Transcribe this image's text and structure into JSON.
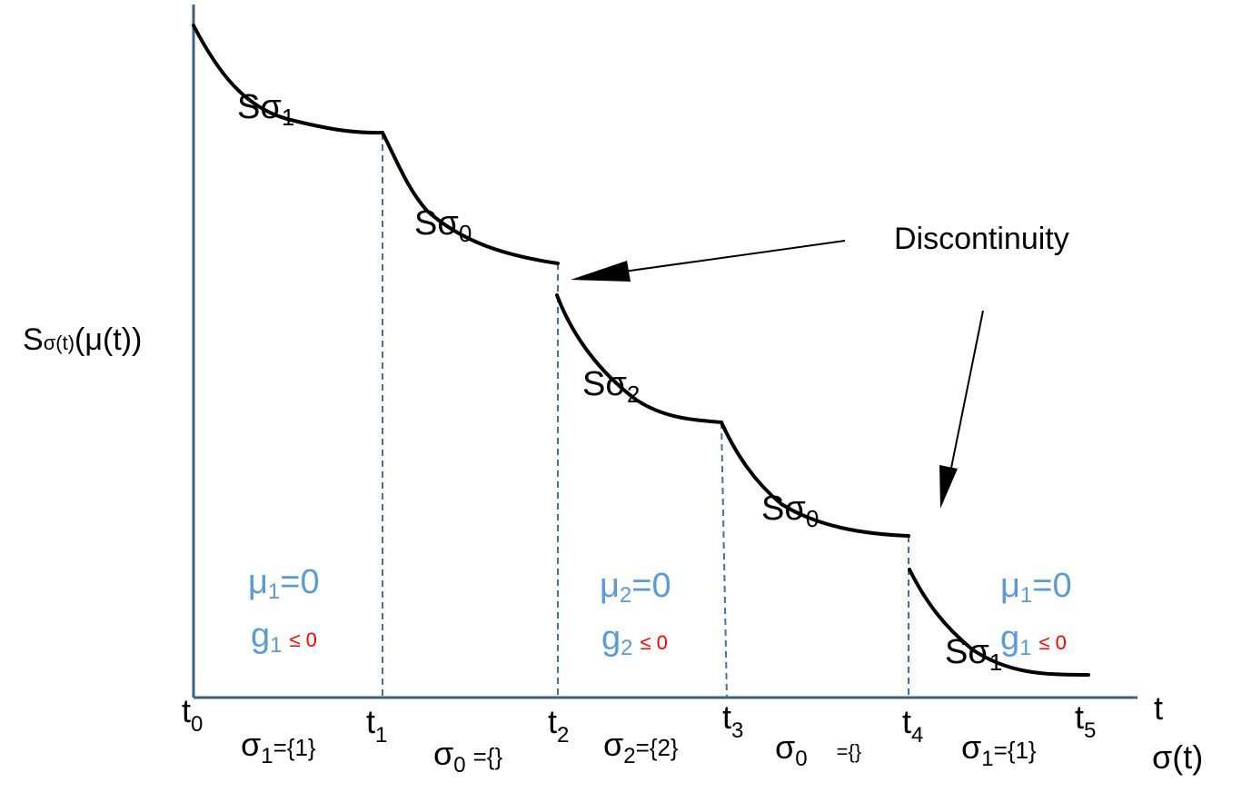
{
  "y_axis_label": {
    "main": "S",
    "sub": "σ(t)",
    "rest": "(μ(t))"
  },
  "x_axis_label": "t",
  "x_axis_label_2": "σ(t)",
  "ticks": [
    {
      "main": "t",
      "sub": "0"
    },
    {
      "main": "t",
      "sub": "1"
    },
    {
      "main": "t",
      "sub": "2"
    },
    {
      "main": "t",
      "sub": "3"
    },
    {
      "main": "t",
      "sub": "4"
    },
    {
      "main": "t",
      "sub": "5"
    }
  ],
  "curve_labels": [
    {
      "main": "Sσ",
      "sub": "1"
    },
    {
      "main": "Sσ",
      "sub": "0"
    },
    {
      "main": "Sσ",
      "sub": "2"
    },
    {
      "main": "Sσ",
      "sub": "0"
    },
    {
      "main": "Sσ",
      "sub": "1"
    }
  ],
  "mode_labels": [
    {
      "main": "σ",
      "sub": "1",
      "rest": "={1}"
    },
    {
      "main": "σ",
      "sub": "0",
      "rest": "={}"
    },
    {
      "main": "σ",
      "sub": "2",
      "rest": "={2}"
    },
    {
      "main": "σ",
      "sub": "0",
      "rest": "={}"
    },
    {
      "main": "σ",
      "sub": "1",
      "rest": "={1}"
    }
  ],
  "constraints": [
    {
      "mu": "μ",
      "mu_sub": "1",
      "mu_rest": "=0",
      "g": "g",
      "g_sub": "1",
      "g_rest": "≤ 0"
    },
    {
      "mu": "μ",
      "mu_sub": "2",
      "mu_rest": "=0",
      "g": "g",
      "g_sub": "2",
      "g_rest": "≤ 0"
    },
    {
      "mu": "μ",
      "mu_sub": "1",
      "mu_rest": "=0",
      "g": "g",
      "g_sub": "1",
      "g_rest": "≤ 0"
    }
  ],
  "annotation": "Discontinuity",
  "colors": {
    "axis": "#41607f",
    "curve": "#000000",
    "dashed": "#41719c",
    "blue": "#5b9bd5",
    "red": "#ff0000"
  }
}
